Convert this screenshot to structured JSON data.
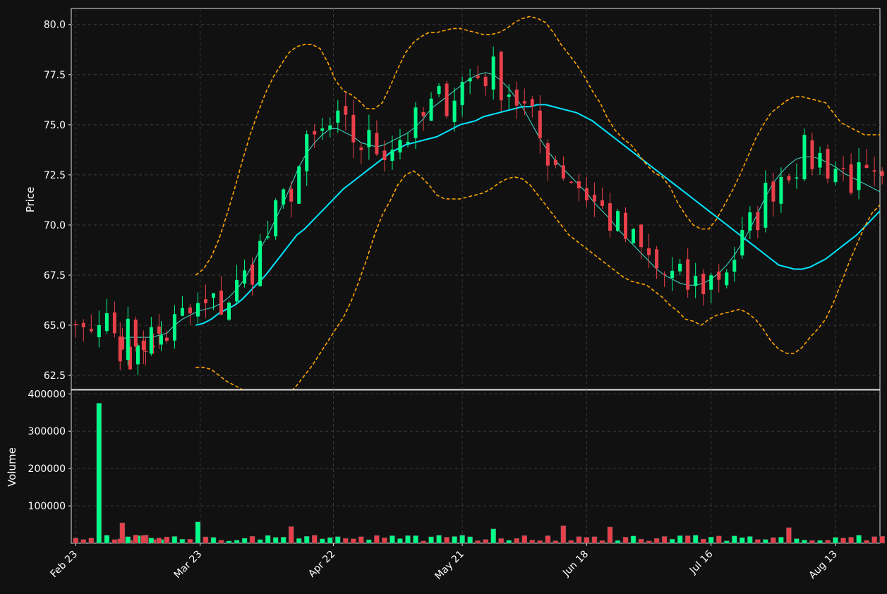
{
  "chart_data": [
    {
      "type": "candlestick",
      "panel": "price",
      "ylabel": "Price",
      "ylim": [
        61.8,
        80.8
      ],
      "yticks": [
        62.5,
        65.0,
        67.5,
        70.0,
        72.5,
        75.0,
        77.5,
        80.0
      ],
      "ytick_labels": [
        "62.5",
        "65.0",
        "67.5",
        "70.0",
        "72.5",
        "75.0",
        "77.5",
        "80.0"
      ],
      "xlim": [
        "2018-02-22",
        "2018-08-23"
      ],
      "xticks": [
        "2018-02-23",
        "2018-03-23",
        "2018-04-22",
        "2018-05-21",
        "2018-06-18",
        "2018-07-16",
        "2018-08-13"
      ],
      "xtick_labels": [
        "Feb 23",
        "Mar 23",
        "Apr 22",
        "May 21",
        "Jun 18",
        "Jul 16",
        "Aug 13"
      ],
      "grid": true,
      "colors": {
        "up": "#00ff88",
        "down": "#e8404a",
        "fast_ma": "#40e0d0",
        "slow_ma": "#00e5ff",
        "bands": "#ffa500"
      },
      "overlays": [
        {
          "style": "thin",
          "start": "2018-03-05",
          "values": [
            64.3,
            64.4,
            64.4,
            64.4,
            64.4,
            64.5,
            64.6,
            65.0,
            65.3,
            65.5,
            65.7,
            65.8,
            65.9,
            66.1,
            66.4,
            66.8,
            67.3,
            68.0,
            68.8,
            69.5,
            70.3,
            71.1,
            72.0,
            72.9,
            73.6,
            74.1,
            74.5,
            74.8,
            74.8,
            74.6,
            74.4,
            74.1,
            74.0,
            73.9,
            74.0,
            74.2,
            74.4,
            74.6,
            74.9,
            75.3,
            75.8,
            76.1,
            76.4,
            76.7,
            77.0,
            77.3,
            77.5,
            77.6,
            77.5,
            77.2,
            76.8,
            76.3,
            75.7,
            75.0,
            74.3,
            73.7,
            73.2,
            72.8,
            72.4,
            72.0,
            71.6,
            71.1,
            70.7,
            70.3,
            69.8,
            69.4,
            69.0,
            68.6,
            68.2,
            67.8,
            67.5,
            67.3,
            67.1,
            67.0,
            67.0,
            67.1,
            67.3,
            67.6,
            68.0,
            68.5,
            69.1,
            69.8,
            70.6,
            71.4,
            72.1,
            72.6,
            73.0,
            73.3,
            73.4,
            73.4,
            73.3,
            73.1,
            72.9,
            72.6,
            72.4,
            72.2,
            72.0,
            71.8,
            71.6,
            71.4,
            71.3,
            71.3,
            71.4,
            71.6,
            71.8,
            71.9
          ]
        },
        {
          "style": "thick",
          "start": "2018-03-22",
          "values": [
            65.0,
            65.1,
            65.3,
            65.6,
            65.8,
            66.0,
            66.3,
            66.7,
            67.1,
            67.5,
            68.0,
            68.5,
            69.0,
            69.5,
            69.8,
            70.2,
            70.6,
            71.0,
            71.4,
            71.8,
            72.1,
            72.4,
            72.7,
            73.0,
            73.3,
            73.6,
            73.8,
            74.0,
            74.1,
            74.2,
            74.3,
            74.4,
            74.6,
            74.8,
            75.0,
            75.1,
            75.2,
            75.4,
            75.5,
            75.6,
            75.7,
            75.8,
            75.9,
            75.9,
            76.0,
            76.0,
            75.9,
            75.8,
            75.7,
            75.6,
            75.4,
            75.2,
            74.9,
            74.6,
            74.3,
            74.0,
            73.7,
            73.4,
            73.1,
            72.8,
            72.5,
            72.2,
            71.9,
            71.6,
            71.3,
            71.0,
            70.7,
            70.4,
            70.1,
            69.8,
            69.5,
            69.2,
            68.9,
            68.6,
            68.3,
            68.0,
            67.9,
            67.8,
            67.8,
            67.9,
            68.1,
            68.3,
            68.6,
            68.9,
            69.2,
            69.5,
            69.9,
            70.3,
            70.7,
            71.1,
            71.5,
            71.9,
            72.3,
            72.6,
            72.8,
            72.9,
            72.9,
            72.8,
            72.6,
            72.4,
            72.2,
            72.0,
            71.8,
            71.6,
            71.5,
            71.4,
            71.3,
            71.3,
            71.4,
            71.5,
            71.7,
            71.9
          ]
        },
        {
          "style": "dashed",
          "start": "2018-03-22",
          "values": [
            67.5,
            67.8,
            68.4,
            69.3,
            70.5,
            71.8,
            73.2,
            74.5,
            75.6,
            76.6,
            77.4,
            78.0,
            78.6,
            78.9,
            79.0,
            79.0,
            78.8,
            78.1,
            77.2,
            76.7,
            76.5,
            76.2,
            75.8,
            75.8,
            76.1,
            76.9,
            77.8,
            78.6,
            79.1,
            79.4,
            79.6,
            79.6,
            79.7,
            79.8,
            79.8,
            79.7,
            79.6,
            79.5,
            79.5,
            79.6,
            79.8,
            80.1,
            80.3,
            80.4,
            80.3,
            80.1,
            79.6,
            79.0,
            78.5,
            78.0,
            77.4,
            76.7,
            76.1,
            75.3,
            74.7,
            74.3,
            74.0,
            73.5,
            73.0,
            72.6,
            72.4,
            71.9,
            71.1,
            70.5,
            70.0,
            69.8,
            69.8,
            70.3,
            71.0,
            71.7,
            72.5,
            73.4,
            74.3,
            75.0,
            75.6,
            75.9,
            76.2,
            76.4,
            76.4,
            76.3,
            76.2,
            76.1,
            75.6,
            75.1,
            74.9,
            74.7,
            74.5,
            74.5,
            74.5,
            74.3,
            74.1,
            73.8,
            73.8,
            73.7,
            73.6,
            73.5,
            73.4,
            73.4,
            73.5,
            73.7,
            73.9
          ]
        },
        {
          "style": "dashed",
          "start": "2018-03-22",
          "values": [
            62.9,
            62.9,
            62.8,
            62.5,
            62.2,
            62.0,
            61.8,
            61.5,
            61.2,
            61.0,
            61.0,
            61.2,
            61.6,
            62.0,
            62.5,
            63.0,
            63.6,
            64.2,
            64.8,
            65.4,
            66.2,
            67.2,
            68.3,
            69.5,
            70.5,
            71.2,
            72.0,
            72.5,
            72.7,
            72.4,
            72.0,
            71.5,
            71.3,
            71.3,
            71.3,
            71.4,
            71.5,
            71.6,
            71.8,
            72.1,
            72.3,
            72.4,
            72.3,
            72.0,
            71.5,
            71.0,
            70.5,
            70.0,
            69.5,
            69.2,
            68.9,
            68.6,
            68.3,
            68.0,
            67.7,
            67.4,
            67.2,
            67.1,
            67.0,
            66.7,
            66.4,
            66.0,
            65.7,
            65.3,
            65.2,
            65.0,
            65.3,
            65.5,
            65.6,
            65.7,
            65.8,
            65.6,
            65.3,
            64.8,
            64.2,
            63.8,
            63.6,
            63.6,
            63.9,
            64.4,
            64.8,
            65.3,
            66.1,
            67.1,
            68.1,
            69.0,
            69.9,
            70.6,
            71.0,
            71.2,
            71.2,
            71.0,
            70.8,
            70.7,
            70.6,
            70.4,
            70.3,
            70.2,
            70.2,
            70.2,
            70.2,
            70.2,
            70.0
          ]
        }
      ]
    },
    {
      "type": "bar",
      "panel": "volume",
      "ylabel": "Volume",
      "ylim": [
        0,
        410000
      ],
      "yticks": [
        100000,
        200000,
        300000,
        400000
      ],
      "ytick_labels": [
        "100000",
        "200000",
        "300000",
        "400000"
      ],
      "grid": true,
      "note": "volume bars share x axis with price panel; one bar per session, coloured like its candle"
    }
  ]
}
